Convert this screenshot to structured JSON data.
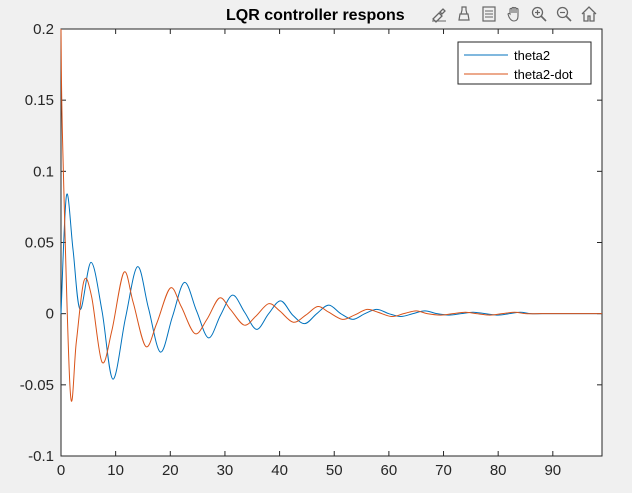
{
  "window": {
    "toolbar_icons": [
      "brush-icon",
      "data-tips-icon",
      "legend-toggle-icon",
      "pan-icon",
      "zoom-in-icon",
      "zoom-out-icon",
      "home-icon"
    ]
  },
  "colors": {
    "background": "#f0f0f0",
    "axes": "#ffffff",
    "series1": "#0072bd",
    "series2": "#d95319"
  },
  "chart_data": {
    "type": "line",
    "title": "LQR controller respons",
    "xlabel": "",
    "ylabel": "",
    "xlim": [
      0,
      99
    ],
    "ylim": [
      -0.1,
      0.2
    ],
    "xticks": [
      0,
      10,
      20,
      30,
      40,
      50,
      60,
      70,
      80,
      90
    ],
    "xtick_labels": [
      "0",
      "10",
      "20",
      "30",
      "40",
      "50",
      "60",
      "70",
      "80",
      "90"
    ],
    "yticks": [
      0.2,
      0.15,
      0.1,
      0.05,
      0,
      -0.05,
      -0.1
    ],
    "ytick_labels": [
      "0.2",
      "0.15",
      "0.1",
      "0.05",
      "0",
      "-0.05",
      "-0.1"
    ],
    "grid": false,
    "legend": {
      "position": "top-right"
    },
    "series": [
      {
        "name": "theta2",
        "x": [
          0,
          1,
          2.2,
          3.5,
          5.5,
          7.5,
          9.5,
          11.8,
          14,
          16,
          18.2,
          20.4,
          22.6,
          24.8,
          27,
          29.2,
          31.4,
          33.6,
          35.8,
          38,
          40.2,
          42.4,
          44.6,
          46.8,
          49,
          51.2,
          53.4,
          55.6,
          57.8,
          60,
          62.2,
          64.4,
          66.6,
          68.8,
          71,
          73.2,
          75.4,
          77.6,
          80,
          82,
          84,
          86,
          88,
          90,
          92,
          94,
          96,
          99
        ],
        "y": [
          0,
          0.083,
          0.045,
          0.003,
          0.036,
          0.002,
          -0.046,
          -0.003,
          0.033,
          0.004,
          -0.027,
          -0.002,
          0.022,
          0.002,
          -0.017,
          -0.001,
          0.013,
          0.001,
          -0.011,
          0.0,
          0.009,
          -0.001,
          -0.007,
          0.0,
          0.006,
          0.0,
          -0.004,
          0.0,
          0.003,
          0.0,
          -0.002,
          0.0,
          0.002,
          0.0,
          -0.001,
          0.0,
          0.001,
          0.0,
          -0.001,
          0.0,
          0.001,
          0.0,
          0.0,
          0.0,
          0.0,
          0.0,
          0.0,
          0.0
        ]
      },
      {
        "name": "theta2-dot",
        "x": [
          0,
          0.3,
          1.7,
          2.8,
          4.2,
          5.6,
          7.5,
          9.3,
          11.5,
          13.2,
          15.5,
          17.5,
          20,
          22,
          24.5,
          26.7,
          29,
          31,
          33.5,
          35.6,
          38,
          40,
          42.5,
          44.8,
          47,
          49,
          51.5,
          53.7,
          56,
          58,
          60.5,
          62.7,
          65,
          67,
          69.5,
          71.7,
          74,
          76,
          78.5,
          80.7,
          83,
          85,
          87.5,
          90,
          93,
          96,
          99
        ],
        "y": [
          0.2,
          0.12,
          -0.055,
          -0.02,
          0.023,
          0.012,
          -0.034,
          -0.012,
          0.029,
          0.008,
          -0.023,
          -0.007,
          0.018,
          0.005,
          -0.014,
          -0.004,
          0.011,
          0.003,
          -0.008,
          -0.002,
          0.007,
          0.002,
          -0.006,
          -0.001,
          0.005,
          0.001,
          -0.004,
          -0.001,
          0.003,
          0.001,
          -0.002,
          0.0,
          0.002,
          0.0,
          -0.001,
          0.0,
          0.001,
          0.0,
          -0.001,
          0.0,
          0.001,
          0.0,
          0.0,
          0.0,
          0.0,
          0.0,
          0.0
        ]
      }
    ]
  }
}
